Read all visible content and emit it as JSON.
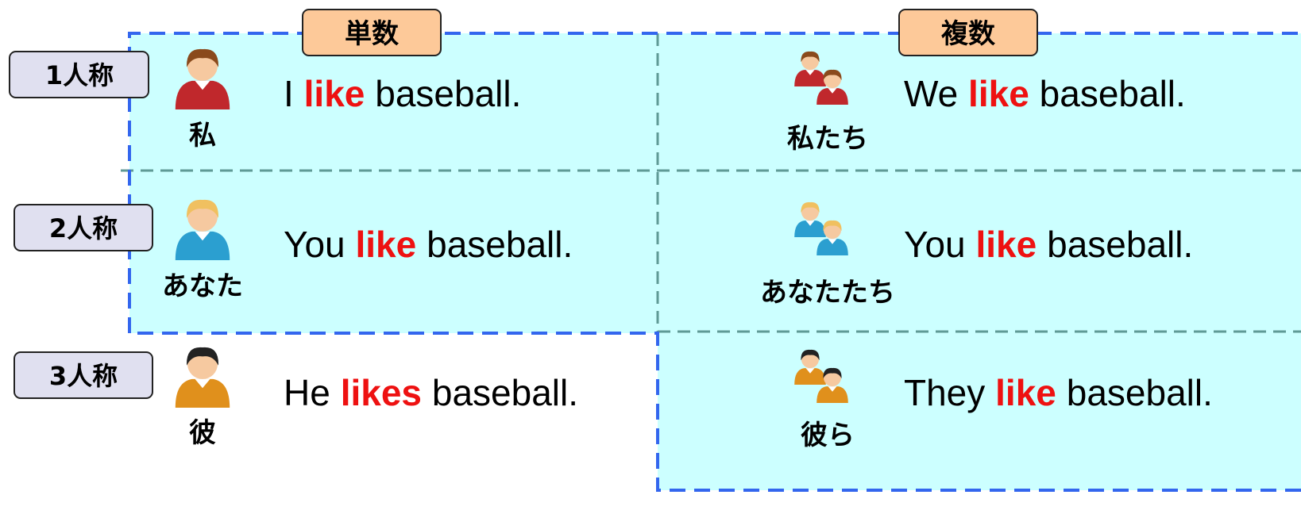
{
  "columns": [
    "単数",
    "複数"
  ],
  "rows": [
    {
      "label": "1人称",
      "cells": [
        {
          "pronoun": "私",
          "subject": "I",
          "verb": "like",
          "object": "baseball."
        },
        {
          "pronoun": "私たち",
          "subject": "We",
          "verb": "like",
          "object": "baseball."
        }
      ]
    },
    {
      "label": "2人称",
      "cells": [
        {
          "pronoun": "あなた",
          "subject": "You",
          "verb": "like",
          "object": "baseball."
        },
        {
          "pronoun": "あなたたち",
          "subject": "You",
          "verb": "like",
          "object": "baseball."
        }
      ]
    },
    {
      "label": "3人称",
      "cells": [
        {
          "pronoun": "彼",
          "subject": "He",
          "verb": "likes",
          "object": "baseball."
        },
        {
          "pronoun": "彼ら",
          "subject": "They",
          "verb": "like",
          "object": "baseball."
        }
      ]
    }
  ]
}
